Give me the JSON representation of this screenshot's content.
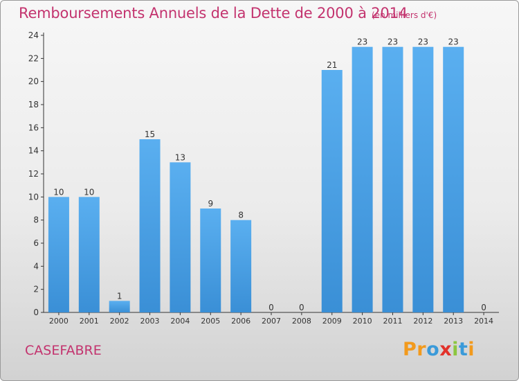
{
  "title": "Remboursements Annuels de la Dette de 2000 à 2014",
  "subtitle": "(en milliers d'€)",
  "commune": "CASEFABRE",
  "logo": {
    "letters": [
      "P",
      "r",
      "o",
      "x",
      "i",
      "t",
      "i"
    ],
    "colors": [
      "#f29a1d",
      "#f29a1d",
      "#3a9ad9",
      "#e2312a",
      "#8cc63f",
      "#3a9ad9",
      "#f29a1d"
    ]
  },
  "colors": {
    "bar": "#3a8fd6",
    "bar_light": "#5aaff0",
    "title": "#c3336e",
    "axis": "#333333"
  },
  "chart_data": {
    "type": "bar",
    "categories": [
      "2000",
      "2001",
      "2002",
      "2003",
      "2004",
      "2005",
      "2006",
      "2007",
      "2008",
      "2009",
      "2010",
      "2011",
      "2012",
      "2013",
      "2014"
    ],
    "values": [
      10,
      10,
      1,
      15,
      13,
      9,
      8,
      0,
      0,
      21,
      23,
      23,
      23,
      23,
      0
    ],
    "data_labels": [
      "10",
      "10",
      "1",
      "15",
      "13",
      "9",
      "8",
      "0",
      "0",
      "21",
      "23",
      "23",
      "23",
      "23",
      "0"
    ],
    "yticks": [
      0,
      2,
      4,
      6,
      8,
      10,
      12,
      14,
      16,
      18,
      20,
      22,
      24
    ],
    "ylim": [
      0,
      24
    ],
    "grid": false
  }
}
